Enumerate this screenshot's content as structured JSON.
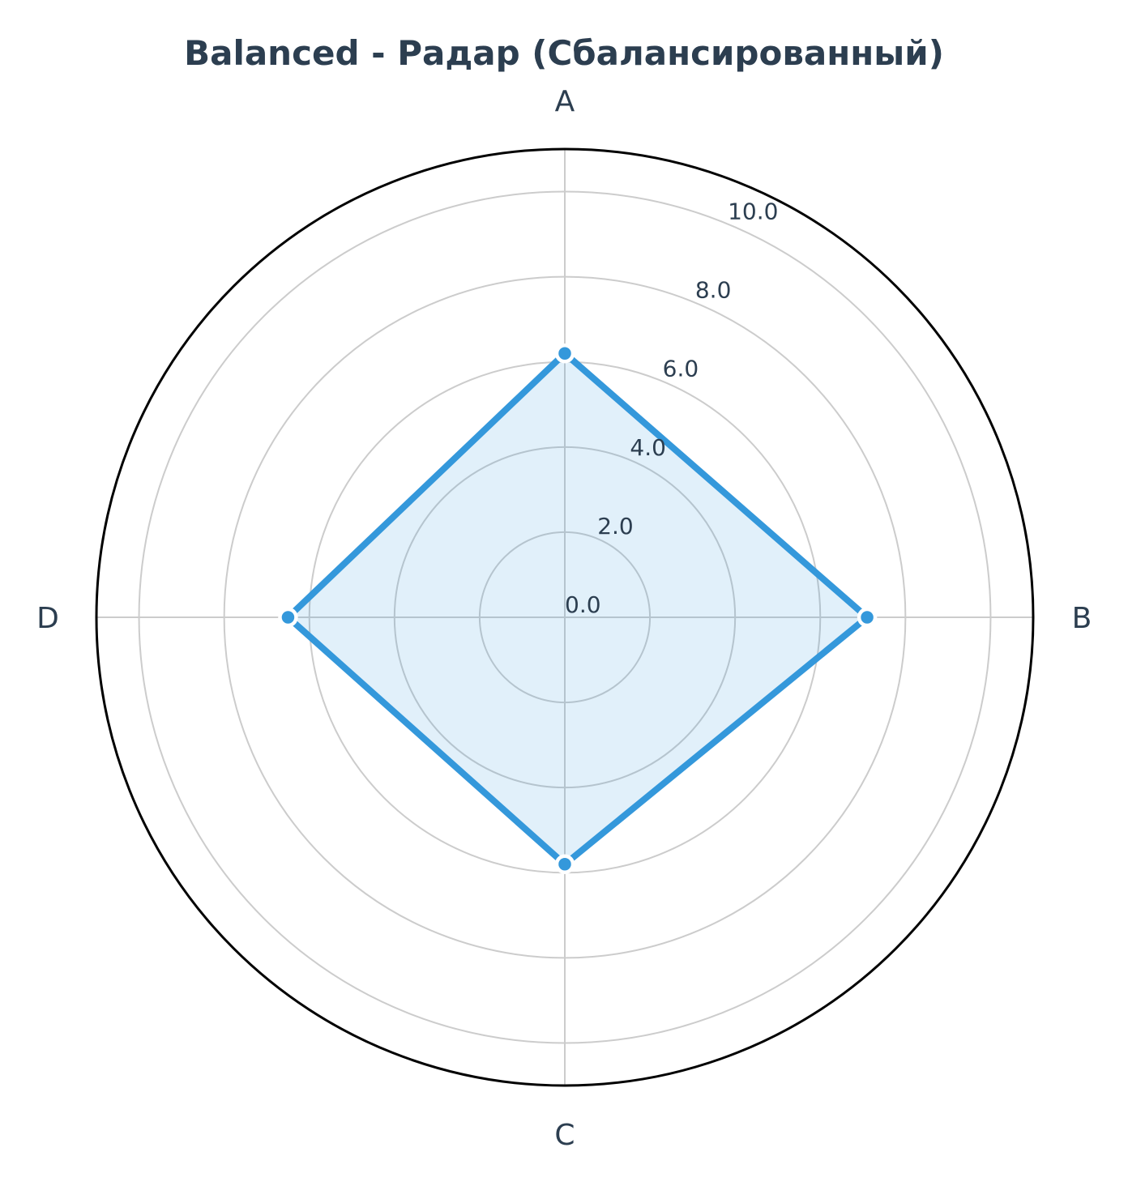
{
  "chart_data": {
    "type": "radar",
    "title": "Balanced - Радар (Сбалансированный)",
    "categories": [
      "A",
      "B",
      "C",
      "D"
    ],
    "series": [
      {
        "values": [
          6.2,
          7.1,
          5.8,
          6.5
        ]
      }
    ],
    "rlim": [
      0,
      11
    ],
    "rticks": [
      0,
      2,
      4,
      6,
      8,
      10
    ],
    "rtick_labels": [
      "0.0",
      "2.0",
      "4.0",
      "6.0",
      "8.0",
      "10.0"
    ],
    "grid": true,
    "colors": {
      "line": "#3498db",
      "fill": "#3498db",
      "fill_opacity": 0.15,
      "text": "#2c3e50",
      "grid": "#cccccc",
      "frame": "#000000",
      "marker_edge": "#ffffff"
    }
  }
}
